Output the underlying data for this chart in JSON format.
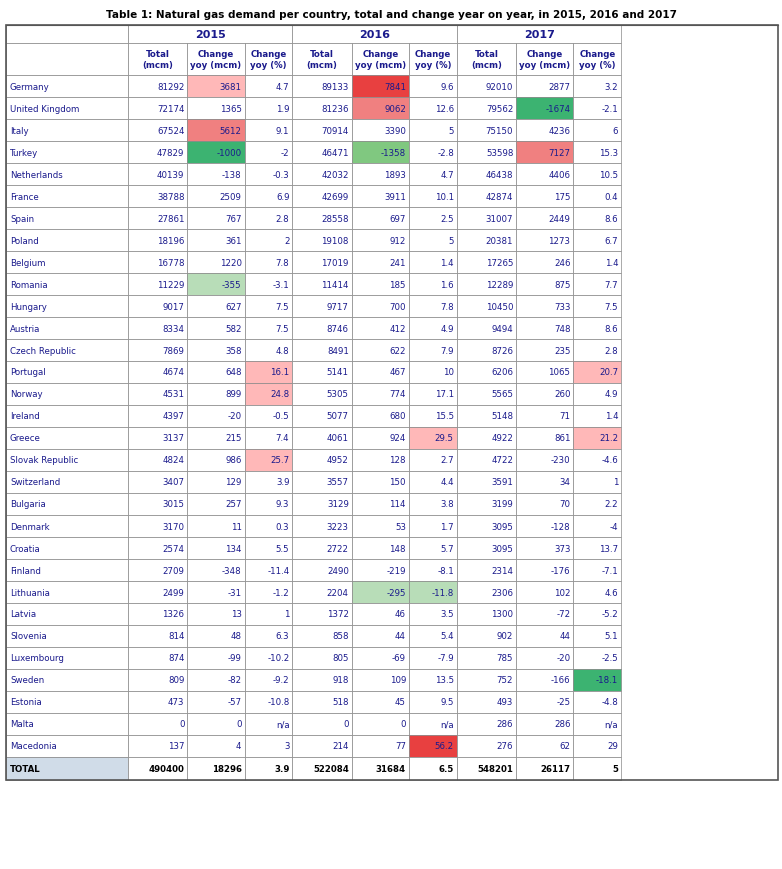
{
  "title": "Table 1: Natural gas demand per country, total and change year on year, in 2015, 2016 and 2017",
  "countries": [
    "Germany",
    "United Kingdom",
    "Italy",
    "Turkey",
    "Netherlands",
    "France",
    "Spain",
    "Poland",
    "Belgium",
    "Romania",
    "Hungary",
    "Austria",
    "Czech Republic",
    "Portugal",
    "Norway",
    "Ireland",
    "Greece",
    "Slovak Republic",
    "Switzerland",
    "Bulgaria",
    "Denmark",
    "Croatia",
    "Finland",
    "Lithuania",
    "Latvia",
    "Slovenia",
    "Luxembourg",
    "Sweden",
    "Estonia",
    "Malta",
    "Macedonia",
    "TOTAL"
  ],
  "data": [
    [
      81292,
      3681,
      4.7,
      89133,
      7841,
      9.6,
      92010,
      2877,
      3.2
    ],
    [
      72174,
      1365,
      1.9,
      81236,
      9062,
      12.6,
      79562,
      -1674,
      -2.1
    ],
    [
      67524,
      5612,
      9.1,
      70914,
      3390,
      5.0,
      75150,
      4236,
      6.0
    ],
    [
      47829,
      -1000,
      -2.0,
      46471,
      -1358,
      -2.8,
      53598,
      7127,
      15.3
    ],
    [
      40139,
      -138,
      -0.3,
      42032,
      1893,
      4.7,
      46438,
      4406,
      10.5
    ],
    [
      38788,
      2509,
      6.9,
      42699,
      3911,
      10.1,
      42874,
      175,
      0.4
    ],
    [
      27861,
      767,
      2.8,
      28558,
      697,
      2.5,
      31007,
      2449,
      8.6
    ],
    [
      18196,
      361,
      2.0,
      19108,
      912,
      5.0,
      20381,
      1273,
      6.7
    ],
    [
      16778,
      1220,
      7.8,
      17019,
      241,
      1.4,
      17265,
      246,
      1.4
    ],
    [
      11229,
      -355,
      -3.1,
      11414,
      185,
      1.6,
      12289,
      875,
      7.7
    ],
    [
      9017,
      627,
      7.5,
      9717,
      700,
      7.8,
      10450,
      733,
      7.5
    ],
    [
      8334,
      582,
      7.5,
      8746,
      412,
      4.9,
      9494,
      748,
      8.6
    ],
    [
      7869,
      358,
      4.8,
      8491,
      622,
      7.9,
      8726,
      235,
      2.8
    ],
    [
      4674,
      648,
      16.1,
      5141,
      467,
      10.0,
      6206,
      1065,
      20.7
    ],
    [
      4531,
      899,
      24.8,
      5305,
      774,
      17.1,
      5565,
      260,
      4.9
    ],
    [
      4397,
      -20,
      -0.5,
      5077,
      680,
      15.5,
      5148,
      71,
      1.4
    ],
    [
      3137,
      215,
      7.4,
      4061,
      924,
      29.5,
      4922,
      861,
      21.2
    ],
    [
      4824,
      986,
      25.7,
      4952,
      128,
      2.7,
      4722,
      -230,
      -4.6
    ],
    [
      3407,
      129,
      3.9,
      3557,
      150,
      4.4,
      3591,
      34,
      1.0
    ],
    [
      3015,
      257,
      9.3,
      3129,
      114,
      3.8,
      3199,
      70,
      2.2
    ],
    [
      3170,
      11,
      0.3,
      3223,
      53,
      1.7,
      3095,
      -128,
      -4.0
    ],
    [
      2574,
      134,
      5.5,
      2722,
      148,
      5.7,
      3095,
      373,
      13.7
    ],
    [
      2709,
      -348,
      -11.4,
      2490,
      -219,
      -8.1,
      2314,
      -176,
      -7.1
    ],
    [
      2499,
      -31,
      -1.2,
      2204,
      -295,
      -11.8,
      2306,
      102,
      4.6
    ],
    [
      1326,
      13,
      1.0,
      1372,
      46,
      3.5,
      1300,
      -72,
      -5.2
    ],
    [
      814,
      48,
      6.3,
      858,
      44,
      5.4,
      902,
      44,
      5.1
    ],
    [
      874,
      -99,
      -10.2,
      805,
      -69,
      -7.9,
      785,
      -20,
      -2.5
    ],
    [
      809,
      -82,
      -9.2,
      918,
      109,
      13.5,
      752,
      -166,
      -18.1
    ],
    [
      473,
      -57,
      -10.8,
      518,
      45,
      9.5,
      493,
      -25,
      -4.8
    ],
    [
      0,
      0,
      null,
      0,
      0,
      null,
      286,
      286,
      null
    ],
    [
      137,
      4,
      3.0,
      214,
      77,
      56.2,
      276,
      62,
      29.0
    ],
    [
      490400,
      18296,
      3.9,
      522084,
      31684,
      6.5,
      548201,
      26117,
      5
    ]
  ],
  "cell_colors": [
    [
      "w",
      "R1",
      "w",
      "w",
      "R3",
      "w",
      "w",
      "w",
      "w"
    ],
    [
      "w",
      "w",
      "w",
      "w",
      "R2",
      "w",
      "w",
      "G3",
      "w"
    ],
    [
      "w",
      "R2",
      "w",
      "w",
      "w",
      "w",
      "w",
      "w",
      "w"
    ],
    [
      "w",
      "G3",
      "w",
      "w",
      "G2",
      "w",
      "w",
      "R2",
      "w"
    ],
    [
      "w",
      "w",
      "w",
      "w",
      "w",
      "w",
      "w",
      "w",
      "w"
    ],
    [
      "w",
      "w",
      "w",
      "w",
      "w",
      "w",
      "w",
      "w",
      "w"
    ],
    [
      "w",
      "w",
      "w",
      "w",
      "w",
      "w",
      "w",
      "w",
      "w"
    ],
    [
      "w",
      "w",
      "w",
      "w",
      "w",
      "w",
      "w",
      "w",
      "w"
    ],
    [
      "w",
      "w",
      "w",
      "w",
      "w",
      "w",
      "w",
      "w",
      "w"
    ],
    [
      "w",
      "G1",
      "w",
      "w",
      "w",
      "w",
      "w",
      "w",
      "w"
    ],
    [
      "w",
      "w",
      "w",
      "w",
      "w",
      "w",
      "w",
      "w",
      "w"
    ],
    [
      "w",
      "w",
      "w",
      "w",
      "w",
      "w",
      "w",
      "w",
      "w"
    ],
    [
      "w",
      "w",
      "w",
      "w",
      "w",
      "w",
      "w",
      "w",
      "w"
    ],
    [
      "w",
      "w",
      "R1",
      "w",
      "w",
      "w",
      "w",
      "w",
      "R1"
    ],
    [
      "w",
      "w",
      "R1",
      "w",
      "w",
      "w",
      "w",
      "w",
      "w"
    ],
    [
      "w",
      "w",
      "w",
      "w",
      "w",
      "w",
      "w",
      "w",
      "w"
    ],
    [
      "w",
      "w",
      "w",
      "w",
      "w",
      "R1",
      "w",
      "w",
      "R1"
    ],
    [
      "w",
      "w",
      "R1",
      "w",
      "w",
      "w",
      "w",
      "w",
      "w"
    ],
    [
      "w",
      "w",
      "w",
      "w",
      "w",
      "w",
      "w",
      "w",
      "w"
    ],
    [
      "w",
      "w",
      "w",
      "w",
      "w",
      "w",
      "w",
      "w",
      "w"
    ],
    [
      "w",
      "w",
      "w",
      "w",
      "w",
      "w",
      "w",
      "w",
      "w"
    ],
    [
      "w",
      "w",
      "w",
      "w",
      "w",
      "w",
      "w",
      "w",
      "w"
    ],
    [
      "w",
      "w",
      "w",
      "w",
      "w",
      "w",
      "w",
      "w",
      "w"
    ],
    [
      "w",
      "w",
      "w",
      "w",
      "G1",
      "G1",
      "w",
      "w",
      "w"
    ],
    [
      "w",
      "w",
      "w",
      "w",
      "w",
      "w",
      "w",
      "w",
      "w"
    ],
    [
      "w",
      "w",
      "w",
      "w",
      "w",
      "w",
      "w",
      "w",
      "w"
    ],
    [
      "w",
      "w",
      "w",
      "w",
      "w",
      "w",
      "w",
      "w",
      "w"
    ],
    [
      "w",
      "w",
      "w",
      "w",
      "w",
      "w",
      "w",
      "w",
      "G3"
    ],
    [
      "w",
      "w",
      "w",
      "w",
      "w",
      "w",
      "w",
      "w",
      "w"
    ],
    [
      "w",
      "w",
      "w",
      "w",
      "w",
      "w",
      "w",
      "w",
      "w"
    ],
    [
      "w",
      "w",
      "w",
      "w",
      "w",
      "R3",
      "w",
      "w",
      "w"
    ],
    [
      "w",
      "w",
      "w",
      "w",
      "w",
      "w",
      "w",
      "w",
      "w"
    ]
  ],
  "color_map": {
    "w": "#ffffff",
    "R3": "#e84040",
    "R2": "#f08080",
    "R1": "#ffb8b8",
    "G3": "#3cb371",
    "G2": "#80c880",
    "G1": "#b8ddb8"
  },
  "text_color": "#1a1a8c",
  "total_bg": "#d0dce8"
}
